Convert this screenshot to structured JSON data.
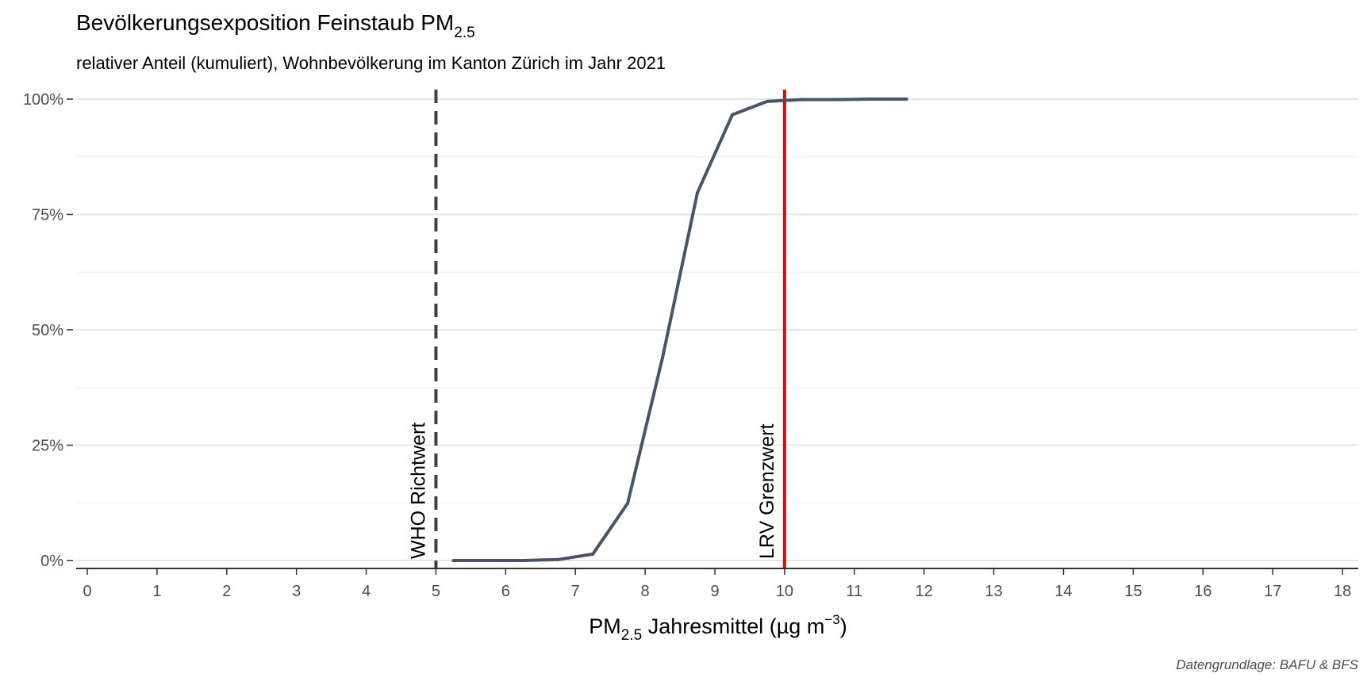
{
  "chart_data": {
    "type": "line",
    "title": "Bevölkerungsexposition Feinstaub PM",
    "title_sub": "2.5",
    "subtitle": "relativer Anteil (kumuliert), Wohnbevölkerung im Kanton Zürich im Jahr 2021",
    "xlabel": {
      "prefix": "PM",
      "prefix_sub": "2.5",
      "middle": " Jahresmittel (µg m",
      "sup": "−3",
      "suffix": ")"
    },
    "caption": "Datengrundlage: BAFU & BFS",
    "xlim": [
      0,
      18
    ],
    "ylim": [
      0,
      1
    ],
    "x_ticks": [
      0,
      1,
      2,
      3,
      4,
      5,
      6,
      7,
      8,
      9,
      10,
      11,
      12,
      13,
      14,
      15,
      16,
      17,
      18
    ],
    "y_ticks": [
      {
        "value": 0,
        "label": "0%"
      },
      {
        "value": 0.25,
        "label": "25%"
      },
      {
        "value": 0.5,
        "label": "50%"
      },
      {
        "value": 0.75,
        "label": "75%"
      },
      {
        "value": 1,
        "label": "100%"
      }
    ],
    "y_minor_ticks": [
      0.125,
      0.375,
      0.625,
      0.875
    ],
    "grid": "horizontal",
    "series": [
      {
        "color": "#4a5467",
        "x": [
          5.25,
          5.75,
          6.25,
          6.75,
          7.25,
          7.75,
          8.25,
          8.75,
          9.25,
          9.75,
          10.25,
          10.75,
          11.25,
          11.75
        ],
        "y": [
          0.0,
          0.0,
          0.0,
          0.002,
          0.014,
          0.124,
          0.44,
          0.797,
          0.966,
          0.995,
          0.999,
          0.999,
          1.0,
          1.0
        ]
      }
    ],
    "reference_lines": [
      {
        "x": 5,
        "label": "WHO Richtwert",
        "color": "#404040",
        "style": "dashed"
      },
      {
        "x": 10,
        "label": "LRV Grenzwert",
        "color": "#cc1111",
        "style": "solid"
      }
    ]
  }
}
